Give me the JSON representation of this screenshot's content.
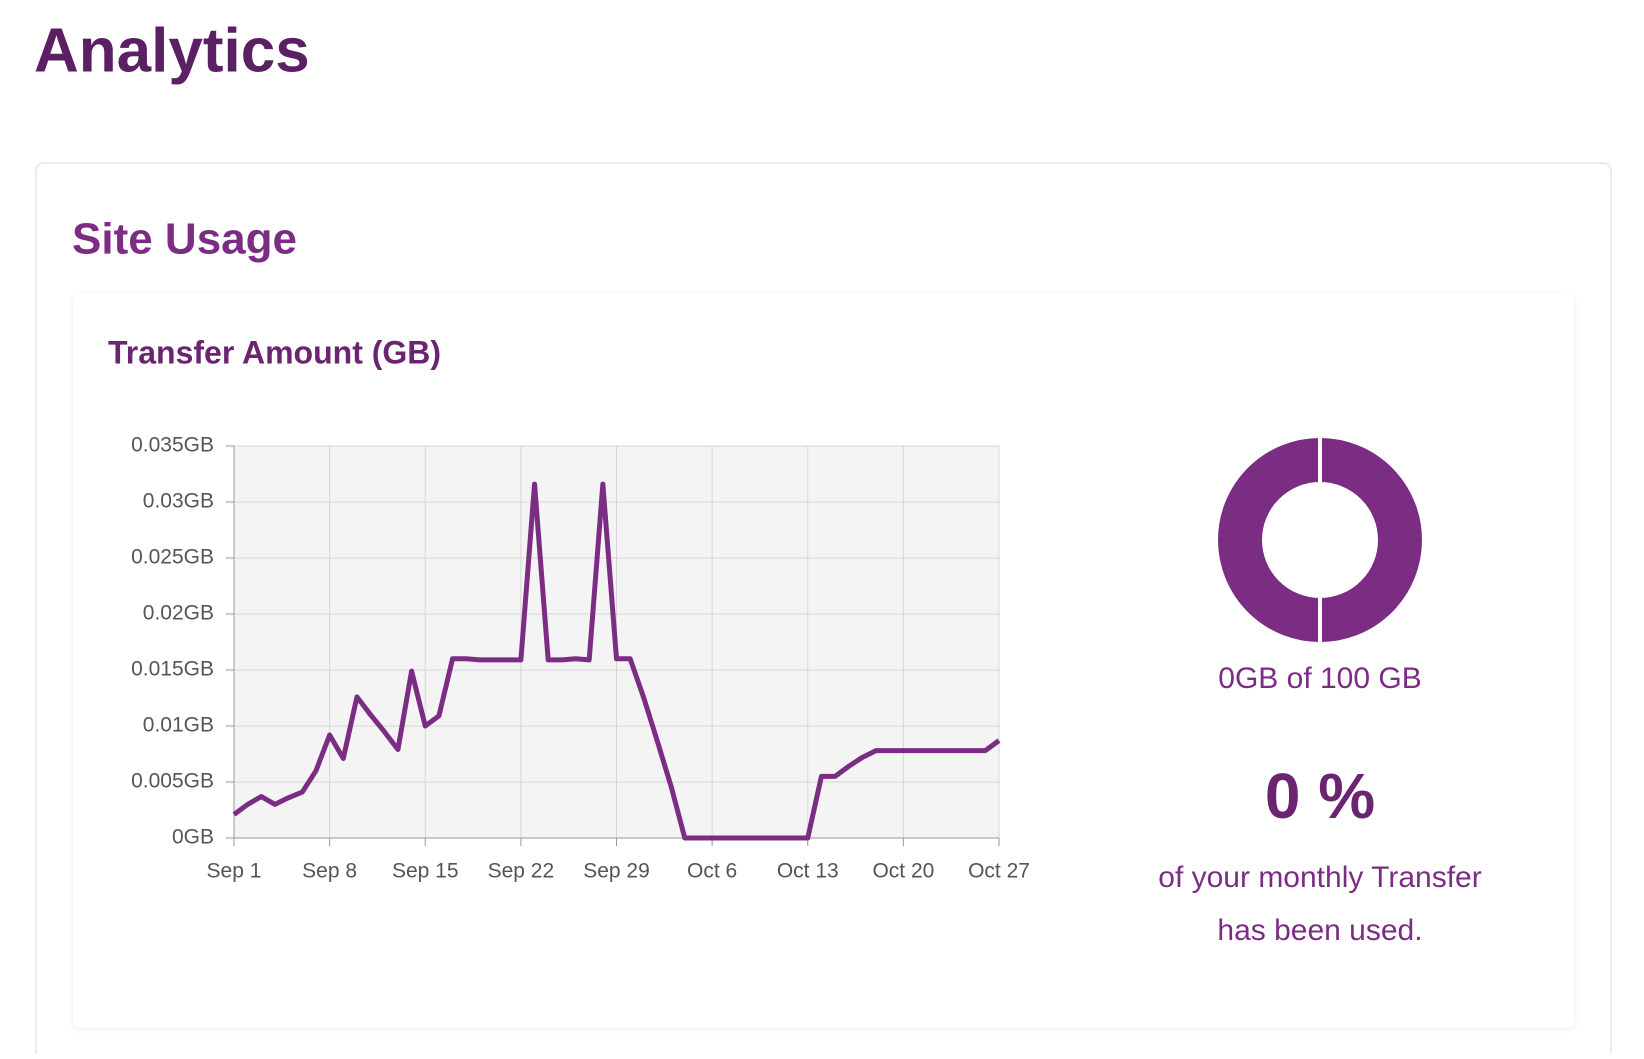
{
  "header": {
    "title": "Analytics"
  },
  "section": {
    "title": "Site Usage"
  },
  "chart_data": [
    {
      "type": "line",
      "title": "Transfer Amount (GB)",
      "color": "#7b2d84",
      "grid": true,
      "categories": [
        "Sep 1",
        null,
        null,
        null,
        null,
        null,
        null,
        "Sep 8",
        null,
        null,
        null,
        null,
        null,
        null,
        "Sep 15",
        null,
        null,
        null,
        null,
        null,
        null,
        "Sep 22",
        null,
        null,
        null,
        null,
        null,
        null,
        "Sep 29",
        null,
        null,
        null,
        null,
        null,
        null,
        "Oct 6",
        null,
        null,
        null,
        null,
        null,
        null,
        "Oct 13",
        null,
        null,
        null,
        null,
        null,
        null,
        "Oct 20",
        null,
        null,
        null,
        null,
        null,
        null,
        "Oct 27"
      ],
      "values": [
        0.0021,
        0.003,
        0.0037,
        0.003,
        0.0036,
        0.0041,
        0.006,
        0.0092,
        0.0071,
        0.0126,
        0.011,
        0.0095,
        0.0079,
        0.0149,
        0.01,
        0.0109,
        0.016,
        0.016,
        0.0159,
        0.0159,
        0.0159,
        0.0159,
        0.0316,
        0.0159,
        0.0159,
        0.016,
        0.0159,
        0.0316,
        0.016,
        0.016,
        0.0125,
        0.0086,
        0.0046,
        0,
        0,
        0,
        0,
        0,
        0,
        0,
        0,
        0,
        0,
        0.0055,
        0.0055,
        0.0064,
        0.0072,
        0.0078,
        0.0078,
        0.0078,
        0.0078,
        0.0078,
        0.0078,
        0.0078,
        0.0078,
        0.0078,
        0.0087
      ],
      "ylim": [
        0,
        0.035
      ],
      "yticks": [
        {
          "value": 0,
          "label": "0GB"
        },
        {
          "value": 0.005,
          "label": "0.005GB"
        },
        {
          "value": 0.01,
          "label": "0.01GB"
        },
        {
          "value": 0.015,
          "label": "0.015GB"
        },
        {
          "value": 0.02,
          "label": "0.02GB"
        },
        {
          "value": 0.025,
          "label": "0.025GB"
        },
        {
          "value": 0.03,
          "label": "0.03GB"
        },
        {
          "value": 0.035,
          "label": "0.035GB"
        }
      ]
    },
    {
      "type": "pie",
      "values": [
        0,
        100
      ],
      "colors": [
        "#7b2d84",
        "#7b2d84"
      ],
      "caption": "0GB of 100 GB",
      "percent_label": "0 %",
      "note": [
        "of your monthly Transfer",
        "has been used."
      ]
    }
  ]
}
